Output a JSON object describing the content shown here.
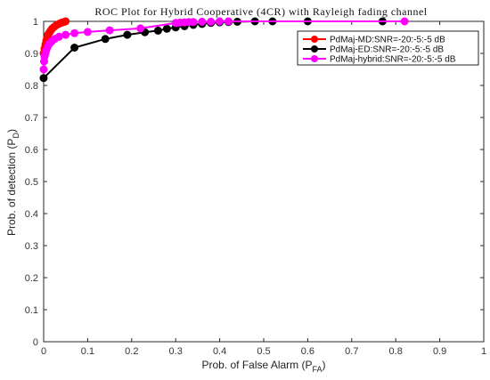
{
  "chart_data": {
    "type": "line",
    "title": "ROC Plot for Hybrid Cooperative (4CR) with Rayleigh fading channel",
    "xlabel": {
      "main": "Prob. of False Alarm (P",
      "sub": "FA",
      "close": ")"
    },
    "ylabel": {
      "main": "Prob. of detection (P",
      "sub": "D",
      "close": ")"
    },
    "xlim": [
      0,
      1
    ],
    "ylim": [
      0,
      1
    ],
    "x_ticks": [
      "0",
      "0.1",
      "0.2",
      "0.3",
      "0.4",
      "0.5",
      "0.6",
      "0.7",
      "0.8",
      "0.9",
      "1"
    ],
    "y_ticks": [
      "0",
      "0.1",
      "0.2",
      "0.3",
      "0.4",
      "0.5",
      "0.6",
      "0.7",
      "0.8",
      "0.9",
      "1"
    ],
    "grid": false,
    "legend_position": "top-right",
    "series": [
      {
        "name": "PdMaj-MD:SNR=-20:-5:-5 dB",
        "color": "#ff0000",
        "x": [
          0.0,
          0.002,
          0.004,
          0.006,
          0.008,
          0.01,
          0.013,
          0.016,
          0.019,
          0.023,
          0.027,
          0.031,
          0.036,
          0.041,
          0.046,
          0.05
        ],
        "y": [
          0.9,
          0.915,
          0.928,
          0.94,
          0.95,
          0.958,
          0.965,
          0.971,
          0.977,
          0.982,
          0.986,
          0.99,
          0.993,
          0.996,
          0.998,
          1.0
        ]
      },
      {
        "name": "PdMaj-ED:SNR=-20:-5:-5 dB",
        "color": "#000000",
        "x": [
          0.0,
          0.07,
          0.14,
          0.19,
          0.23,
          0.26,
          0.28,
          0.3,
          0.32,
          0.34,
          0.36,
          0.38,
          0.4,
          0.42,
          0.44,
          0.48,
          0.52,
          0.6,
          0.77
        ],
        "y": [
          0.823,
          0.918,
          0.945,
          0.958,
          0.966,
          0.971,
          0.977,
          0.981,
          0.985,
          0.989,
          0.992,
          0.995,
          0.997,
          0.998,
          0.999,
          1.0,
          1.0,
          1.0,
          1.0
        ]
      },
      {
        "name": "PdMaj-hybrid:SNR=-20:-5:-5 dB",
        "color": "#ff00ff",
        "x": [
          0.0,
          0.001,
          0.002,
          0.004,
          0.006,
          0.009,
          0.013,
          0.018,
          0.025,
          0.035,
          0.05,
          0.07,
          0.1,
          0.15,
          0.22,
          0.3,
          0.31,
          0.32,
          0.33,
          0.34,
          0.36,
          0.38,
          0.4,
          0.42,
          0.82
        ],
        "y": [
          0.85,
          0.875,
          0.89,
          0.9,
          0.91,
          0.92,
          0.93,
          0.937,
          0.945,
          0.952,
          0.958,
          0.963,
          0.967,
          0.972,
          0.978,
          0.995,
          0.996,
          0.997,
          0.998,
          0.998,
          0.999,
          0.999,
          1.0,
          1.0,
          1.0
        ]
      }
    ]
  }
}
